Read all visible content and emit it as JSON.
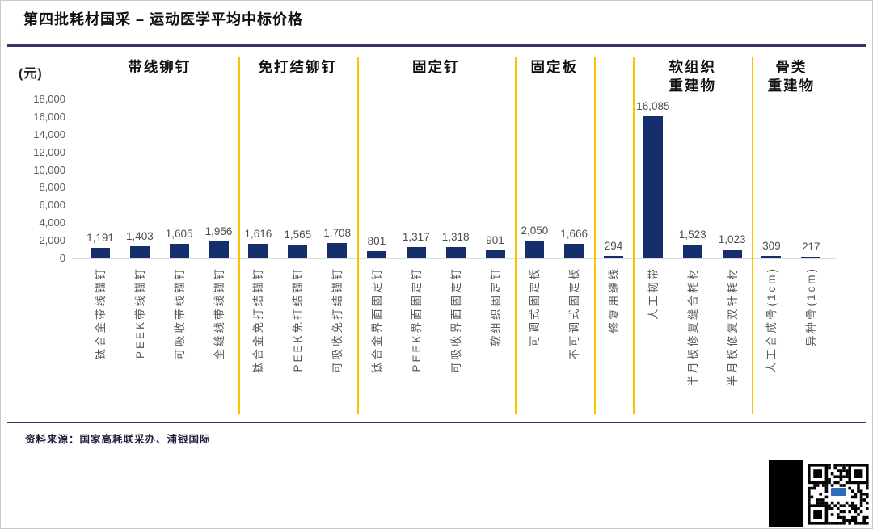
{
  "title": "第四批耗材国采 – 运动医学平均中标价格",
  "source": "资料来源：国家高耗联采办、浦银国际",
  "colors": {
    "bar": "#142F6B",
    "separator": "#FFC000",
    "rule": "#34346B",
    "axis_text": "#595959",
    "baseline": "#DCDCDC"
  },
  "chart_data": {
    "type": "bar",
    "title": "第四批耗材国采 – 运动医学平均中标价格",
    "unit_label": "(元)",
    "ylabel": "元",
    "xlabel": "",
    "ylim": [
      0,
      18000
    ],
    "ytick_step": 2000,
    "grid": false,
    "legend": "none",
    "groups": [
      {
        "header_lines": [
          "带线铆钉"
        ],
        "items": [
          {
            "label": "钛合金带线锚钉",
            "value": 1191,
            "value_label": "1,191"
          },
          {
            "label": "PEEK带线锚钉",
            "value": 1403,
            "value_label": "1,403"
          },
          {
            "label": "可吸收带线锚钉",
            "value": 1605,
            "value_label": "1,605"
          },
          {
            "label": "全缝线带线锚钉",
            "value": 1956,
            "value_label": "1,956"
          }
        ]
      },
      {
        "header_lines": [
          "免打结铆钉"
        ],
        "items": [
          {
            "label": "钛合金免打结锚钉",
            "value": 1616,
            "value_label": "1,616"
          },
          {
            "label": "PEEK免打结锚钉",
            "value": 1565,
            "value_label": "1,565"
          },
          {
            "label": "可吸收免打结锚钉",
            "value": 1708,
            "value_label": "1,708"
          }
        ]
      },
      {
        "header_lines": [
          "固定钉"
        ],
        "items": [
          {
            "label": "钛合金界面固定钉",
            "value": 801,
            "value_label": "801"
          },
          {
            "label": "PEEK界面固定钉",
            "value": 1317,
            "value_label": "1,317"
          },
          {
            "label": "可吸收界面固定钉",
            "value": 1318,
            "value_label": "1,318"
          },
          {
            "label": "软组织固定钉",
            "value": 901,
            "value_label": "901"
          }
        ]
      },
      {
        "header_lines": [
          "固定板"
        ],
        "items": [
          {
            "label": "可调式固定板",
            "value": 2050,
            "value_label": "2,050"
          },
          {
            "label": "不可调式固定板",
            "value": 1666,
            "value_label": "1,666"
          }
        ]
      },
      {
        "header_lines": [],
        "items": [
          {
            "label": "修复用缝线",
            "value": 294,
            "value_label": "294"
          }
        ]
      },
      {
        "header_lines": [
          "软组织",
          "重建物"
        ],
        "items": [
          {
            "label": "人工韧带",
            "value": 16085,
            "value_label": "16,085"
          },
          {
            "label": "半月板修复缝合耗材",
            "value": 1523,
            "value_label": "1,523"
          },
          {
            "label": "半月板修复双针耗材",
            "value": 1023,
            "value_label": "1,023"
          }
        ]
      },
      {
        "header_lines": [
          "骨类",
          "重建物"
        ],
        "items": [
          {
            "label": "人工合成骨(1cm)",
            "value": 309,
            "value_label": "309"
          },
          {
            "label": "异种骨(1cm)",
            "value": 217,
            "value_label": "217"
          }
        ]
      }
    ]
  }
}
